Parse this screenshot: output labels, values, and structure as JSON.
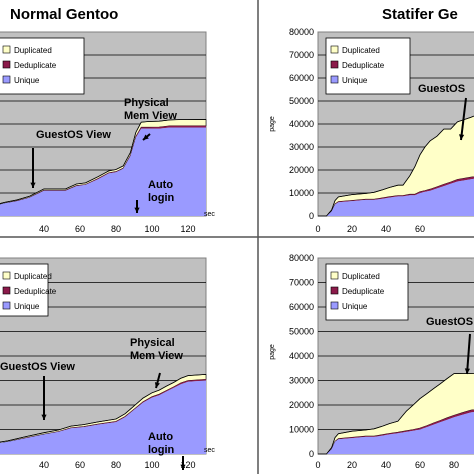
{
  "chart_data": [
    {
      "panel": "top-left",
      "type": "area",
      "title": "Normal Gentoo",
      "xlabel_unit": "sec",
      "xticks": [
        40,
        60,
        80,
        100,
        120
      ],
      "xlim": [
        10,
        130
      ],
      "ylim": [
        0,
        80000
      ],
      "grid": true,
      "legend": [
        "Duplicated",
        "Deduplicate",
        "Unique"
      ],
      "legend_position": "top-left",
      "x": [
        10,
        18,
        25,
        32,
        40,
        48,
        52,
        58,
        63,
        70,
        76,
        80,
        84,
        88,
        91,
        94,
        98,
        104,
        110,
        115,
        120,
        130
      ],
      "series": [
        {
          "name": "Unique",
          "values": [
            4000,
            5500,
            6500,
            8000,
            11000,
            11000,
            11000,
            13000,
            13500,
            16000,
            18500,
            19000,
            20500,
            26000,
            34000,
            38000,
            38000,
            38000,
            38500,
            38500,
            38500,
            38500
          ]
        },
        {
          "name": "Deduplicate",
          "values": [
            0,
            0,
            100,
            100,
            200,
            200,
            200,
            200,
            200,
            300,
            300,
            300,
            300,
            400,
            500,
            600,
            600,
            700,
            700,
            700,
            700,
            700
          ]
        },
        {
          "name": "Duplicated",
          "values": [
            300,
            400,
            400,
            500,
            600,
            600,
            600,
            700,
            700,
            800,
            800,
            900,
            1000,
            1200,
            1800,
            2200,
            2500,
            2500,
            2600,
            2700,
            2700,
            2800
          ]
        }
      ],
      "annotations": [
        {
          "text": "GuestOS View",
          "x": 40,
          "y": 33000
        },
        {
          "text": "Physical Mem View",
          "x": 104,
          "y": 60000
        },
        {
          "text": "Auto login",
          "x": 100,
          "y": 14000
        }
      ]
    },
    {
      "panel": "top-right",
      "type": "area",
      "title": "Statifer Ge",
      "ylabel": "page",
      "yticks": [
        0,
        10000,
        20000,
        30000,
        40000,
        50000,
        60000,
        70000,
        80000
      ],
      "xticks": [
        0,
        20,
        40,
        60
      ],
      "xlim": [
        0,
        100
      ],
      "ylim": [
        0,
        80000
      ],
      "grid": true,
      "legend": [
        "Duplicated",
        "Deduplicate",
        "Unique"
      ],
      "legend_position": "top-left",
      "x": [
        0,
        5,
        8,
        10,
        12,
        20,
        28,
        33,
        38,
        42,
        47,
        50,
        54,
        57,
        60,
        63,
        66,
        70,
        74,
        78,
        82,
        90,
        100
      ],
      "series": [
        {
          "name": "Unique",
          "values": [
            0,
            0,
            2000,
            5000,
            6000,
            6500,
            7000,
            7000,
            7500,
            8000,
            8500,
            8500,
            9000,
            9000,
            10000,
            10500,
            11000,
            12000,
            13000,
            14000,
            15000,
            16000,
            17000
          ]
        },
        {
          "name": "Deduplicate",
          "values": [
            0,
            0,
            100,
            200,
            300,
            300,
            300,
            300,
            400,
            400,
            400,
            400,
            500,
            500,
            600,
            600,
            700,
            700,
            800,
            800,
            900,
            900,
            1000
          ]
        },
        {
          "name": "Duplicated",
          "values": [
            0,
            0,
            500,
            1500,
            2000,
            2500,
            2500,
            3000,
            3500,
            4000,
            4500,
            4500,
            8000,
            12000,
            16000,
            19000,
            21000,
            22000,
            24000,
            23000,
            25000,
            26000,
            28000
          ]
        }
      ],
      "annotations": [
        {
          "text": "GuestOS",
          "x": 86,
          "y": 52000
        }
      ]
    },
    {
      "panel": "bottom-left",
      "type": "area",
      "title": "",
      "xlabel_unit": "sec",
      "xticks": [
        40,
        60,
        80,
        100,
        120
      ],
      "xlim": [
        10,
        130
      ],
      "ylim": [
        0,
        80000
      ],
      "grid": true,
      "legend": [
        "Duplicated",
        "Deduplicate",
        "Unique"
      ],
      "legend_position": "top-left",
      "x": [
        10,
        20,
        30,
        40,
        48,
        55,
        62,
        70,
        80,
        85,
        90,
        95,
        100,
        104,
        108,
        112,
        116,
        120,
        130
      ],
      "series": [
        {
          "name": "Unique",
          "values": [
            4000,
            5000,
            6500,
            8000,
            9000,
            10500,
            11000,
            12000,
            13000,
            15000,
            18000,
            21000,
            23000,
            24000,
            25500,
            27000,
            28500,
            29500,
            30000
          ]
        },
        {
          "name": "Deduplicate",
          "values": [
            0,
            0,
            100,
            100,
            200,
            200,
            200,
            200,
            300,
            300,
            300,
            300,
            400,
            400,
            400,
            400,
            500,
            500,
            500
          ]
        },
        {
          "name": "Duplicated",
          "values": [
            300,
            400,
            500,
            600,
            600,
            700,
            800,
            900,
            1000,
            1100,
            1300,
            1500,
            1600,
            1700,
            1800,
            1800,
            1900,
            2000,
            2000
          ]
        }
      ],
      "annotations": [
        {
          "text": "GuestOS View",
          "x": 48,
          "y": 40000
        },
        {
          "text": "Physical Mem View",
          "x": 104,
          "y": 50000
        },
        {
          "text": "Auto login",
          "x": 116,
          "y": 14000
        }
      ]
    },
    {
      "panel": "bottom-right",
      "type": "area",
      "title": "",
      "ylabel": "page",
      "yticks": [
        0,
        10000,
        20000,
        30000,
        40000,
        50000,
        60000,
        70000,
        80000
      ],
      "xticks": [
        0,
        20,
        40,
        60,
        80
      ],
      "xlim": [
        0,
        100
      ],
      "ylim": [
        0,
        80000
      ],
      "grid": true,
      "legend": [
        "Duplicated",
        "Deduplicate",
        "Unique"
      ],
      "legend_position": "top-left",
      "x": [
        0,
        5,
        8,
        10,
        12,
        20,
        28,
        33,
        38,
        42,
        47,
        52,
        56,
        60,
        64,
        68,
        72,
        76,
        80,
        85,
        90,
        100
      ],
      "series": [
        {
          "name": "Unique",
          "values": [
            0,
            0,
            2000,
            5000,
            6000,
            6500,
            7000,
            7000,
            7500,
            8000,
            8500,
            9000,
            9500,
            10000,
            11000,
            12000,
            13000,
            14000,
            15000,
            16000,
            17000,
            18000
          ]
        },
        {
          "name": "Deduplicate",
          "values": [
            0,
            0,
            100,
            200,
            300,
            300,
            300,
            300,
            400,
            400,
            400,
            500,
            500,
            600,
            600,
            700,
            700,
            800,
            800,
            900,
            900,
            1000
          ]
        },
        {
          "name": "Duplicated",
          "values": [
            0,
            0,
            500,
            1500,
            2000,
            2500,
            2500,
            3000,
            3500,
            4000,
            4500,
            8000,
            10000,
            12000,
            13000,
            14000,
            15000,
            16000,
            17000,
            16000,
            15000,
            14000
          ]
        }
      ],
      "annotations": [
        {
          "text": "GuestOS",
          "x": 92,
          "y": 60000
        }
      ]
    }
  ],
  "colors": {
    "duplicated": "#ffffc8",
    "deduplicate": "#8b1a4a",
    "unique": "#9a9aff",
    "plot_background": "#c0c0c0"
  }
}
